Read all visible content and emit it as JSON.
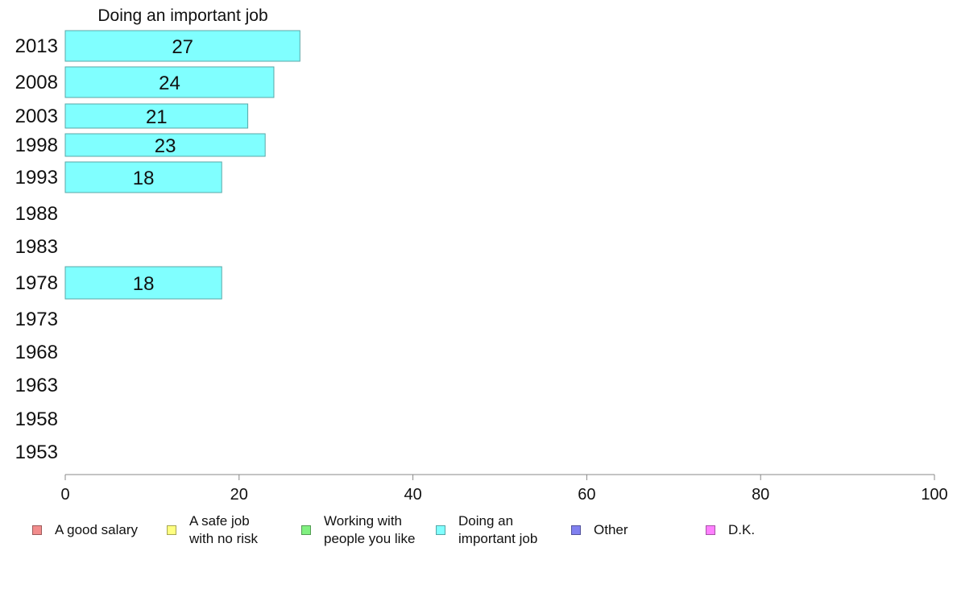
{
  "chart_data": {
    "type": "bar",
    "orientation": "horizontal",
    "title": "Doing an important job",
    "categories": [
      "2013",
      "2008",
      "2003",
      "1998",
      "1993",
      "1988",
      "1983",
      "1978",
      "1973",
      "1968",
      "1963",
      "1958",
      "1953"
    ],
    "series": [
      {
        "name": "Doing an important job",
        "values": [
          27,
          24,
          21,
          23,
          18,
          null,
          null,
          18,
          null,
          null,
          null,
          null,
          null
        ]
      }
    ],
    "data_labels": [
      "27",
      "24",
      "21",
      "23",
      "18",
      "",
      "",
      "18",
      "",
      "",
      "",
      "",
      ""
    ],
    "xlim": [
      0,
      100
    ],
    "xticks": [
      0,
      20,
      40,
      60,
      80,
      100
    ],
    "grid": false,
    "bar_color": "#80ffff",
    "legend_position": "bottom",
    "legend": [
      {
        "label": "A good salary",
        "color": "#f28c8c"
      },
      {
        "label": "A safe job\nwith no risk",
        "color": "#ffff80"
      },
      {
        "label": "Working with\npeople you like",
        "color": "#80f080"
      },
      {
        "label": "Doing an\nimportant job",
        "color": "#80ffff"
      },
      {
        "label": "Other",
        "color": "#8080f0"
      },
      {
        "label": "D.K.",
        "color": "#ff80ff"
      }
    ]
  }
}
